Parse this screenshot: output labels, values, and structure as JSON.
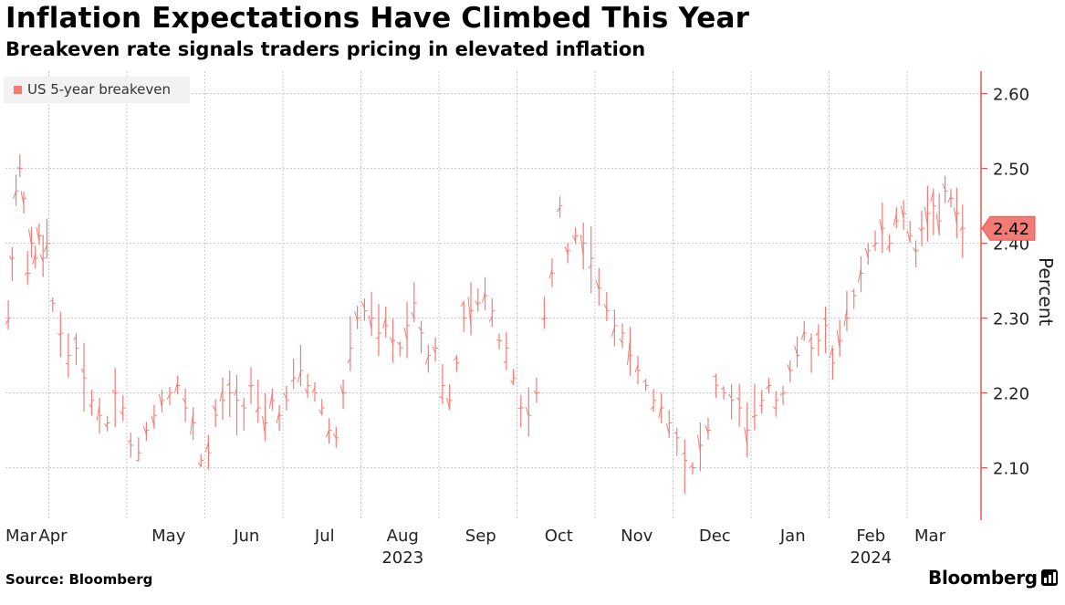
{
  "title": "Inflation Expectations Have Climbed This Year",
  "subtitle": "Breakeven rate signals traders pricing in elevated inflation",
  "source": "Source: Bloomberg",
  "brand": "Bloomberg",
  "colors": {
    "series": "#f27b76",
    "axis": "#e8564f",
    "grid": "#c8c8c8",
    "tag_text": "#000000"
  },
  "chart_data": {
    "type": "line",
    "title": "Inflation Expectations Have Climbed This Year",
    "subtitle": "Breakeven rate signals traders pricing in elevated inflation",
    "ylabel": "Percent",
    "ylim": [
      2.03,
      2.63
    ],
    "y_ticks": [
      "2.60",
      "2.50",
      "2.40",
      "2.30",
      "2.20",
      "2.10"
    ],
    "x_tick_labels": [
      "Mar",
      "Apr",
      "May",
      "Jun",
      "Jul",
      "Aug",
      "Sep",
      "Oct",
      "Nov",
      "Dec",
      "Jan",
      "Feb",
      "Mar"
    ],
    "x_year_labels": [
      {
        "label": "2023",
        "month_index": 5
      },
      {
        "label": "2024",
        "month_index": 11
      }
    ],
    "grid": true,
    "legend_position": "top-left",
    "last_value_label": "2.42",
    "series": [
      {
        "name": "US 5-year breakeven",
        "style": "daily high-low range bars",
        "monthly_points": [
          {
            "month": "Mar 2023",
            "values": [
              2.3,
              2.38,
              2.47,
              2.5,
              2.46,
              2.36,
              2.4,
              2.38,
              2.41,
              2.38,
              2.4
            ]
          },
          {
            "month": "Apr 2023",
            "values": [
              2.32,
              2.28,
              2.25,
              2.26,
              2.22,
              2.19,
              2.17,
              2.16,
              2.2,
              2.18
            ]
          },
          {
            "month": "May 2023",
            "values": [
              2.13,
              2.12,
              2.15,
              2.17,
              2.19,
              2.2,
              2.21,
              2.18,
              2.16,
              2.11
            ]
          },
          {
            "month": "Jun 2023",
            "values": [
              2.12,
              2.17,
              2.19,
              2.2,
              2.19,
              2.18,
              2.21,
              2.18,
              2.16,
              2.19,
              2.17
            ]
          },
          {
            "month": "Jul 2023",
            "values": [
              2.19,
              2.22,
              2.23,
              2.21,
              2.2,
              2.18,
              2.15,
              2.14,
              2.2,
              2.26,
              2.3
            ]
          },
          {
            "month": "Aug 2023",
            "values": [
              2.31,
              2.3,
              2.28,
              2.29,
              2.27,
              2.26,
              2.29,
              2.32,
              2.28,
              2.25,
              2.26
            ]
          },
          {
            "month": "Sep 2023",
            "values": [
              2.21,
              2.19,
              2.24,
              2.3,
              2.31,
              2.32,
              2.33,
              2.31,
              2.27,
              2.26,
              2.22
            ]
          },
          {
            "month": "Oct 2023",
            "values": [
              2.18,
              2.17,
              2.2,
              2.3,
              2.36,
              2.45,
              2.39,
              2.41,
              2.4,
              2.38
            ]
          },
          {
            "month": "Nov 2023",
            "values": [
              2.34,
              2.31,
              2.29,
              2.28,
              2.25,
              2.23,
              2.21,
              2.19,
              2.18,
              2.16
            ]
          },
          {
            "month": "Dec 2023",
            "values": [
              2.14,
              2.11,
              2.1,
              2.13,
              2.15,
              2.21,
              2.2,
              2.19,
              2.18,
              2.15
            ]
          },
          {
            "month": "Jan 2024",
            "values": [
              2.17,
              2.19,
              2.21,
              2.19,
              2.2,
              2.23,
              2.25,
              2.28,
              2.26,
              2.27,
              2.29
            ]
          },
          {
            "month": "Feb 2024",
            "values": [
              2.24,
              2.27,
              2.3,
              2.33,
              2.36,
              2.39,
              2.4,
              2.42,
              2.4,
              2.43,
              2.44
            ]
          },
          {
            "month": "Mar 2024",
            "values": [
              2.41,
              2.39,
              2.42,
              2.44,
              2.45,
              2.43,
              2.47,
              2.46,
              2.44,
              2.42
            ]
          }
        ]
      }
    ]
  }
}
